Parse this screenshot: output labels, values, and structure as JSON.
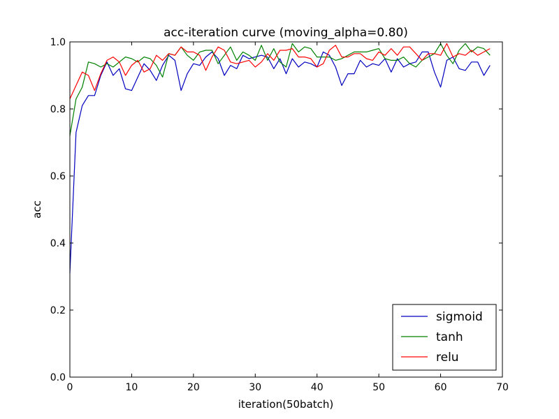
{
  "chart_data": {
    "type": "line",
    "title": "acc-iteration curve (moving_alpha=0.80)",
    "xlabel": "iteration(50batch)",
    "ylabel": "acc",
    "xlim": [
      0,
      70
    ],
    "ylim": [
      0.0,
      1.0
    ],
    "xticks": [
      "0",
      "10",
      "20",
      "30",
      "40",
      "50",
      "60",
      "70"
    ],
    "yticks": [
      "0.0",
      "0.2",
      "0.4",
      "0.6",
      "0.8",
      "1.0"
    ],
    "grid": false,
    "legend_position": "lower-right",
    "x": [
      0,
      1,
      2,
      3,
      4,
      5,
      6,
      7,
      8,
      9,
      10,
      11,
      12,
      13,
      14,
      15,
      16,
      17,
      18,
      19,
      20,
      21,
      22,
      23,
      24,
      25,
      26,
      27,
      28,
      29,
      30,
      31,
      32,
      33,
      34,
      35,
      36,
      37,
      38,
      39,
      40,
      41,
      42,
      43,
      44,
      45,
      46,
      47,
      48,
      49,
      50,
      51,
      52,
      53,
      54,
      55,
      56,
      57,
      58,
      59,
      60,
      61,
      62,
      63,
      64,
      65,
      66,
      67,
      68
    ],
    "series": [
      {
        "name": "sigmoid",
        "color": "#0000bf",
        "values": [
          0.31,
          0.73,
          0.81,
          0.84,
          0.84,
          0.9,
          0.94,
          0.9,
          0.92,
          0.86,
          0.855,
          0.895,
          0.935,
          0.915,
          0.885,
          0.93,
          0.96,
          0.945,
          0.855,
          0.905,
          0.935,
          0.93,
          0.955,
          0.97,
          0.95,
          0.9,
          0.93,
          0.92,
          0.96,
          0.95,
          0.955,
          0.96,
          0.955,
          0.92,
          0.95,
          0.905,
          0.95,
          0.925,
          0.94,
          0.935,
          0.925,
          0.97,
          0.96,
          0.925,
          0.87,
          0.905,
          0.905,
          0.945,
          0.925,
          0.935,
          0.93,
          0.95,
          0.91,
          0.95,
          0.925,
          0.935,
          0.94,
          0.97,
          0.97,
          0.91,
          0.865,
          0.945,
          0.955,
          0.92,
          0.915,
          0.94,
          0.94,
          0.9,
          0.93
        ]
      },
      {
        "name": "tanh",
        "color": "#008000",
        "values": [
          0.72,
          0.83,
          0.865,
          0.94,
          0.935,
          0.925,
          0.935,
          0.925,
          0.94,
          0.955,
          0.95,
          0.94,
          0.955,
          0.95,
          0.93,
          0.895,
          0.965,
          0.96,
          0.985,
          0.96,
          0.945,
          0.97,
          0.975,
          0.975,
          0.935,
          0.96,
          0.985,
          0.945,
          0.97,
          0.96,
          0.945,
          0.99,
          0.945,
          0.98,
          0.94,
          0.925,
          0.995,
          0.97,
          0.985,
          0.98,
          0.955,
          0.955,
          0.955,
          0.945,
          0.95,
          0.96,
          0.97,
          0.97,
          0.97,
          0.975,
          0.98,
          0.95,
          0.945,
          0.945,
          0.955,
          0.935,
          0.925,
          0.945,
          0.955,
          0.965,
          0.995,
          0.96,
          0.935,
          0.975,
          0.995,
          0.97,
          0.985,
          0.98,
          0.96
        ]
      },
      {
        "name": "relu",
        "color": "#ff0000",
        "values": [
          0.83,
          0.87,
          0.91,
          0.9,
          0.855,
          0.905,
          0.945,
          0.955,
          0.94,
          0.9,
          0.93,
          0.945,
          0.91,
          0.92,
          0.96,
          0.945,
          0.965,
          0.96,
          0.985,
          0.97,
          0.97,
          0.96,
          0.915,
          0.955,
          0.985,
          0.975,
          0.94,
          0.935,
          0.94,
          0.945,
          0.925,
          0.94,
          0.965,
          0.945,
          0.975,
          0.975,
          0.98,
          0.955,
          0.955,
          0.95,
          0.925,
          0.935,
          0.975,
          0.99,
          0.955,
          0.955,
          0.965,
          0.965,
          0.95,
          0.945,
          0.97,
          0.96,
          0.98,
          0.96,
          0.985,
          0.985,
          0.965,
          0.945,
          0.965,
          0.965,
          0.96,
          0.995,
          0.955,
          0.965,
          0.96,
          0.975,
          0.96,
          0.97,
          0.98
        ]
      }
    ]
  }
}
